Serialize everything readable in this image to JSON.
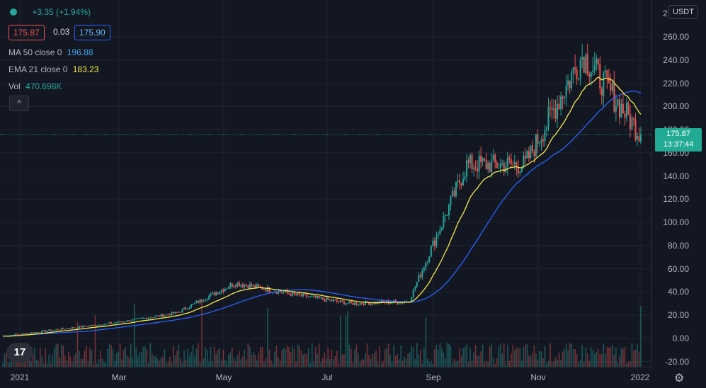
{
  "legend": {
    "change": "+3.35 (+1.94%)",
    "bid": "175.87",
    "spread": "0.03",
    "ask": "175.90",
    "ma_label": "MA 50 close 0",
    "ma_value": "196.88",
    "ema_label": "EMA 21 close 0",
    "ema_value": "183.23",
    "vol_label": "Vol",
    "vol_value": "470.698K",
    "collapse_glyph": "^"
  },
  "price_axis": {
    "unit": "USDT",
    "top_clip": "2",
    "ticks": [
      "260.00",
      "240.00",
      "220.00",
      "200.00",
      "180.00",
      "160.00",
      "140.00",
      "120.00",
      "100.00",
      "80.00",
      "60.00",
      "40.00",
      "20.00",
      "0.00",
      "-20.00"
    ],
    "last_price": "175.87",
    "countdown": "13:37:44"
  },
  "time_axis": {
    "labels": [
      "2021",
      "Mar",
      "May",
      "Jul",
      "Sep",
      "Nov",
      "2022"
    ]
  },
  "colors": {
    "background": "#131722",
    "up": "#26a69a",
    "down": "#ef5350",
    "ma": "#2962ff",
    "ema": "#f5e94b",
    "grid": "#1f2330"
  },
  "chart_data": {
    "type": "candlestick",
    "ylim": [
      -20,
      260
    ],
    "last_price": 175.87,
    "ma50_last": 196.88,
    "ema21_last": 183.23,
    "price_path": [
      {
        "x": "2021-01",
        "y": 2
      },
      {
        "x": "2021-02",
        "y": 8
      },
      {
        "x": "2021-03",
        "y": 14
      },
      {
        "x": "2021-04",
        "y": 22
      },
      {
        "x": "2021-05",
        "y": 48
      },
      {
        "x": "2021-06",
        "y": 38
      },
      {
        "x": "2021-07",
        "y": 30
      },
      {
        "x": "2021-08",
        "y": 32
      },
      {
        "x": "2021-09",
        "y": 150
      },
      {
        "x": "2021-10",
        "y": 150
      },
      {
        "x": "2021-11",
        "y": 245
      },
      {
        "x": "2021-12",
        "y": 175.87
      }
    ]
  },
  "icons": {
    "logo": "tradingview-logo",
    "settings": "gear-icon",
    "status": "dot-icon"
  }
}
